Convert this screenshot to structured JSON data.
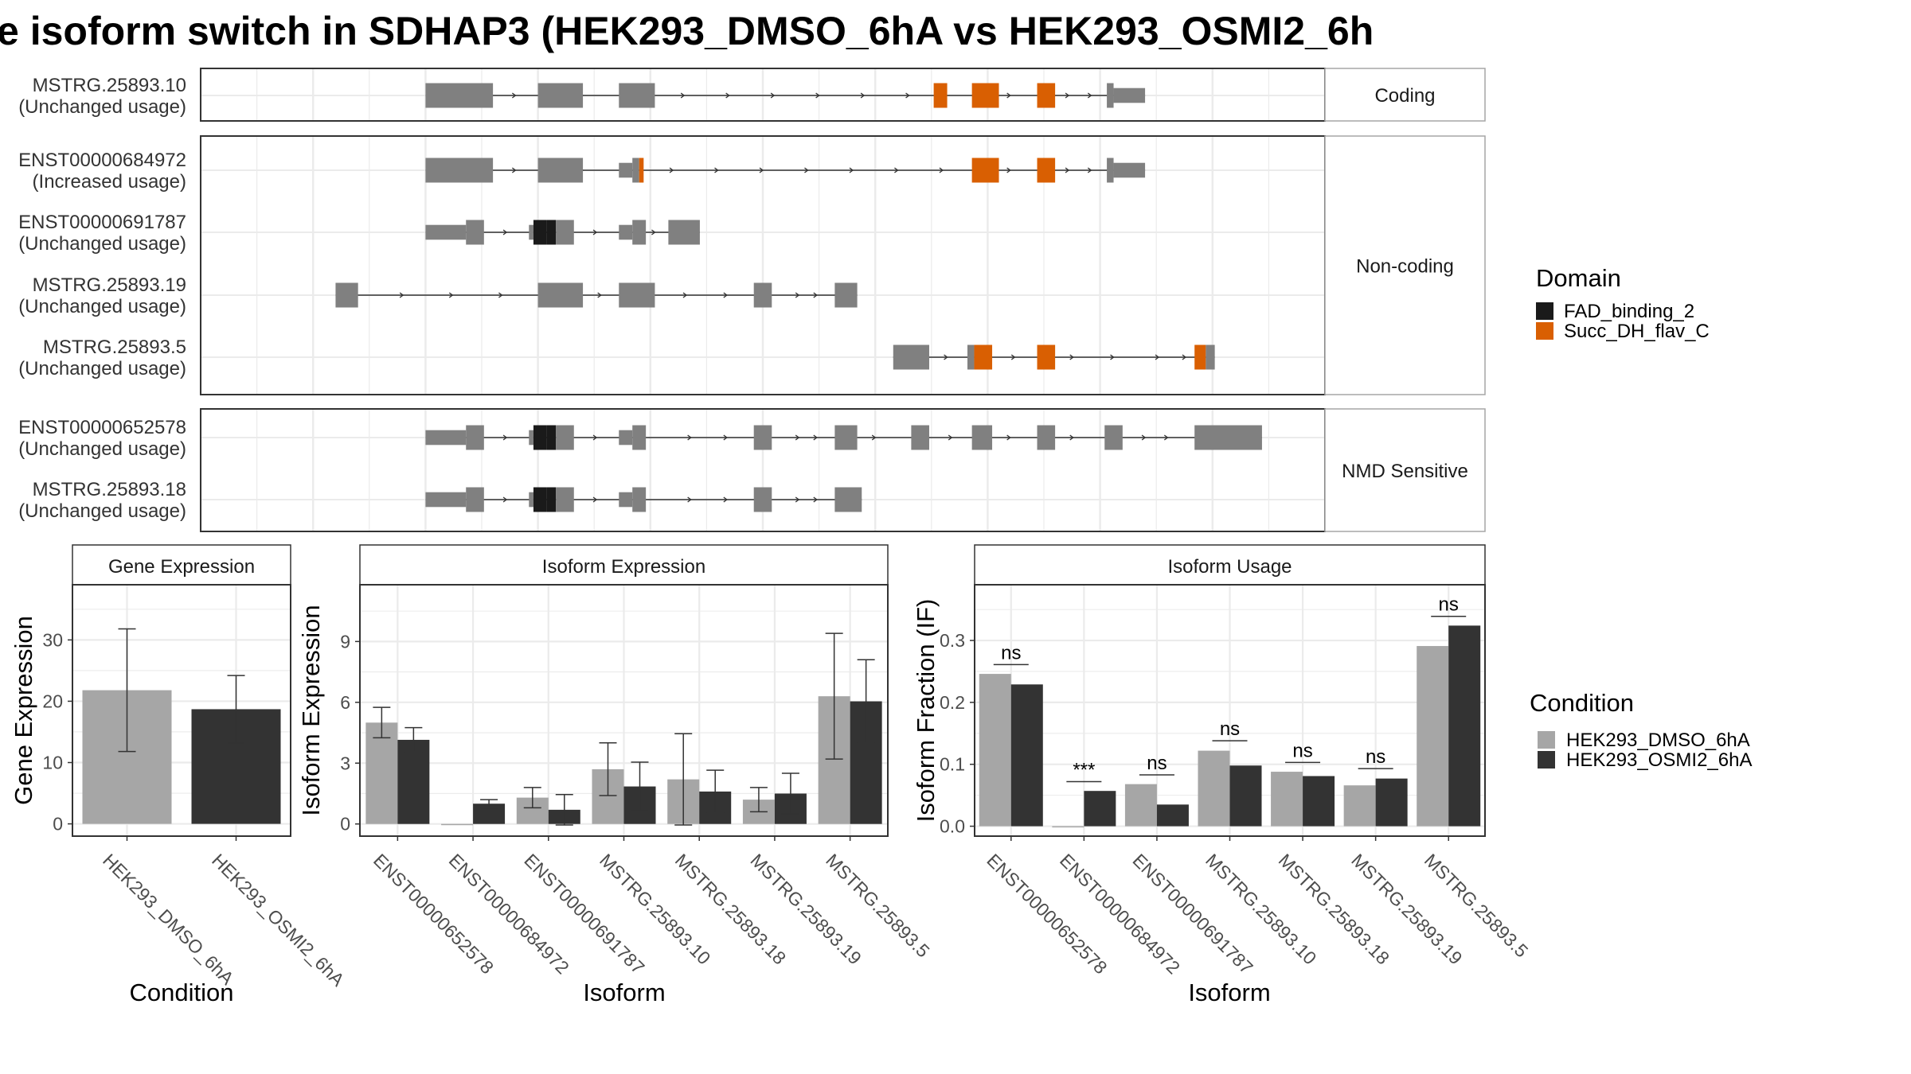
{
  "title": "e isoform switch in SDHAP3 (HEK293_DMSO_6hA vs HEK293_OSMI2_6h",
  "colors": {
    "exon": "#808080",
    "line": "#333333",
    "fad": "#1a1a1a",
    "succ": "#d95f02",
    "dmso": "#a6a6a6",
    "osmi": "#333333",
    "grid": "#ebebeb",
    "strip_bg": "#ffffff",
    "border": "#333333"
  },
  "transcripts": {
    "panels": [
      {
        "label": "Coding",
        "tracks": [
          {
            "name": "MSTRG.25893.10",
            "usage": "(Unchanged usage)",
            "exons": [
              [
                10,
                13,
                "gray",
                1
              ],
              [
                15,
                17,
                "gray",
                1
              ],
              [
                18.6,
                20.2,
                "gray",
                1
              ],
              [
                32.6,
                33.2,
                "orange",
                1
              ],
              [
                34.3,
                35.5,
                "orange",
                1
              ],
              [
                37.2,
                38,
                "orange",
                1
              ],
              [
                40.3,
                40.6,
                "gray",
                1
              ],
              [
                40.6,
                42,
                "gray",
                0.6
              ]
            ],
            "arrows": [
              12.8,
              14,
              17,
              19.8,
              21.5,
              23.5,
              25.5,
              27.5,
              29.5,
              31.5,
              36,
              38.6,
              39.6
            ]
          }
        ]
      },
      {
        "label": "Non-coding",
        "tracks": [
          {
            "name": "ENST00000684972",
            "usage": "(Increased usage)",
            "exons": [
              [
                10,
                13,
                "gray",
                1
              ],
              [
                15,
                17,
                "gray",
                1
              ],
              [
                18.6,
                19.2,
                "gray",
                0.6
              ],
              [
                19.2,
                19.5,
                "gray",
                1
              ],
              [
                19.5,
                19.7,
                "orange",
                1
              ],
              [
                34.3,
                35.5,
                "orange",
                1
              ],
              [
                37.2,
                38,
                "orange",
                1
              ],
              [
                40.3,
                40.6,
                "gray",
                1
              ],
              [
                40.6,
                42,
                "gray",
                0.6
              ]
            ],
            "arrows": [
              14,
              17,
              21,
              23,
              25,
              27,
              29,
              31,
              33,
              36,
              38.6,
              39.6
            ]
          },
          {
            "name": "ENST00000691787",
            "usage": "(Unchanged usage)",
            "exons": [
              [
                10,
                11.8,
                "gray",
                0.6
              ],
              [
                11.8,
                12.6,
                "gray",
                1
              ],
              [
                14.6,
                14.8,
                "gray",
                0.6
              ],
              [
                14.8,
                15.4,
                "fad",
                1
              ],
              [
                15.4,
                15.8,
                "fad",
                1
              ],
              [
                15.8,
                16.6,
                "gray",
                1
              ],
              [
                18.6,
                19.2,
                "gray",
                0.6
              ],
              [
                19.2,
                19.8,
                "gray",
                1
              ],
              [
                20.8,
                22.2,
                "gray",
                1
              ]
            ],
            "arrows": [
              13.6,
              17.6,
              20.2
            ]
          },
          {
            "name": "MSTRG.25893.19",
            "usage": "(Unchanged usage)",
            "exons": [
              [
                6,
                7,
                "gray",
                1
              ],
              [
                15,
                17,
                "gray",
                1
              ],
              [
                18.6,
                20.2,
                "gray",
                1
              ],
              [
                24.6,
                25.4,
                "gray",
                1
              ],
              [
                28.2,
                29.2,
                "gray",
                1
              ]
            ],
            "arrows": [
              9,
              11.2,
              13.4,
              17.8,
              21.6,
              23.4,
              26.6,
              27.4
            ]
          },
          {
            "name": "MSTRG.25893.5",
            "usage": "(Unchanged usage)",
            "exons": [
              [
                30.8,
                32.4,
                "gray",
                1
              ],
              [
                34.1,
                34.4,
                "gray",
                1
              ],
              [
                34.4,
                35.2,
                "orange",
                1
              ],
              [
                37.2,
                38,
                "orange",
                1
              ],
              [
                44.2,
                44.7,
                "orange",
                1
              ],
              [
                44.7,
                45.1,
                "gray",
                1
              ]
            ],
            "arrows": [
              33.2,
              36.2,
              38.8,
              40.6,
              42.6,
              43.8
            ]
          }
        ]
      },
      {
        "label": "NMD Sensitive",
        "tracks": [
          {
            "name": "ENST00000652578",
            "usage": "(Unchanged usage)",
            "exons": [
              [
                10,
                11.8,
                "gray",
                0.6
              ],
              [
                11.8,
                12.6,
                "gray",
                1
              ],
              [
                14.6,
                14.8,
                "gray",
                0.6
              ],
              [
                14.8,
                15.4,
                "fad",
                1
              ],
              [
                15.4,
                15.8,
                "fad",
                1
              ],
              [
                15.8,
                16.6,
                "gray",
                1
              ],
              [
                18.6,
                19.2,
                "gray",
                0.6
              ],
              [
                19.2,
                19.8,
                "gray",
                1
              ],
              [
                24.6,
                25.4,
                "gray",
                1
              ],
              [
                28.2,
                29.2,
                "gray",
                1
              ],
              [
                31.6,
                32.4,
                "gray",
                1
              ],
              [
                34.3,
                35.2,
                "gray",
                1
              ],
              [
                37.2,
                38,
                "gray",
                1
              ],
              [
                40.2,
                41,
                "gray",
                1
              ],
              [
                44.2,
                47.2,
                "gray",
                1
              ]
            ],
            "arrows": [
              13.6,
              17.6,
              21.8,
              23.4,
              26.6,
              27.4,
              30,
              33.4,
              36,
              38.8,
              42,
              43
            ]
          },
          {
            "name": "MSTRG.25893.18",
            "usage": "(Unchanged usage)",
            "exons": [
              [
                10,
                11.8,
                "gray",
                0.6
              ],
              [
                11.8,
                12.6,
                "gray",
                1
              ],
              [
                14.6,
                14.8,
                "gray",
                0.6
              ],
              [
                14.8,
                15.4,
                "fad",
                1
              ],
              [
                15.4,
                15.8,
                "fad",
                1
              ],
              [
                15.8,
                16.6,
                "gray",
                1
              ],
              [
                18.6,
                19.2,
                "gray",
                0.6
              ],
              [
                19.2,
                19.8,
                "gray",
                1
              ],
              [
                24.6,
                25.4,
                "gray",
                1
              ],
              [
                28.2,
                29.4,
                "gray",
                1
              ]
            ],
            "arrows": [
              13.6,
              17.6,
              21.8,
              23.4,
              26.6,
              27.4
            ]
          }
        ]
      }
    ]
  },
  "legends": {
    "domain": {
      "title": "Domain",
      "items": [
        "FAD_binding_2",
        "Succ_DH_flav_C"
      ]
    },
    "condition": {
      "title": "Condition",
      "items": [
        "HEK293_DMSO_6hA",
        "HEK293_OSMI2_6hA"
      ]
    }
  },
  "chart_data": [
    {
      "type": "bar",
      "title": "Gene Expression",
      "xlabel": "Condition",
      "ylabel": "Gene Expression",
      "ylim": [
        -2,
        39
      ],
      "yticks": [
        0,
        10,
        20,
        30
      ],
      "categories": [
        "HEK293_DMSO_6hA",
        "HEK293_OSMI2_6hA"
      ],
      "series": [
        {
          "name": "HEK293_DMSO_6hA",
          "values": [
            21.8,
            null
          ],
          "err": [
            10,
            null
          ]
        },
        {
          "name": "HEK293_OSMI2_6hA",
          "values": [
            null,
            18.7
          ],
          "err": [
            null,
            5.5
          ]
        }
      ]
    },
    {
      "type": "bar",
      "title": "Isoform Expression",
      "xlabel": "Isoform",
      "ylabel": "Isoform Expression",
      "ylim": [
        -0.6,
        11.8
      ],
      "yticks": [
        0,
        3,
        6,
        9
      ],
      "categories": [
        "ENST00000652578",
        "ENST00000684972",
        "ENST00000691787",
        "MSTRG.25893.10",
        "MSTRG.25893.18",
        "MSTRG.25893.19",
        "MSTRG.25893.5"
      ],
      "series": [
        {
          "name": "HEK293_DMSO_6hA",
          "values": [
            5.0,
            0.0,
            1.3,
            2.7,
            2.2,
            1.2,
            6.3
          ],
          "err": [
            0.75,
            0,
            0.5,
            1.3,
            2.25,
            0.6,
            3.1
          ]
        },
        {
          "name": "HEK293_OSMI2_6hA",
          "values": [
            4.15,
            1.0,
            0.7,
            1.85,
            1.6,
            1.5,
            6.05
          ],
          "err": [
            0.6,
            0.2,
            0.75,
            1.2,
            1.05,
            1.0,
            2.05
          ]
        }
      ]
    },
    {
      "type": "bar",
      "title": "Isoform Usage",
      "xlabel": "Isoform",
      "ylabel": "Isoform Fraction (IF)",
      "ylim": [
        -0.016,
        0.39
      ],
      "yticks": [
        0.0,
        0.1,
        0.2,
        0.3
      ],
      "ytick_labels": [
        "0.0",
        "0.1",
        "0.2",
        "0.3"
      ],
      "categories": [
        "ENST00000652578",
        "ENST00000684972",
        "ENST00000691787",
        "MSTRG.25893.10",
        "MSTRG.25893.18",
        "MSTRG.25893.19",
        "MSTRG.25893.5"
      ],
      "series": [
        {
          "name": "HEK293_DMSO_6hA",
          "values": [
            0.246,
            0.0,
            0.068,
            0.122,
            0.088,
            0.066,
            0.291
          ]
        },
        {
          "name": "HEK293_OSMI2_6hA",
          "values": [
            0.229,
            0.057,
            0.035,
            0.098,
            0.081,
            0.077,
            0.324
          ]
        }
      ],
      "annotations": [
        {
          "text": "ns",
          "level": 0.261
        },
        {
          "text": "***",
          "level": 0.072
        },
        {
          "text": "ns",
          "level": 0.083
        },
        {
          "text": "ns",
          "level": 0.138
        },
        {
          "text": "ns",
          "level": 0.103
        },
        {
          "text": "ns",
          "level": 0.093
        },
        {
          "text": "ns",
          "level": 0.339
        }
      ]
    }
  ]
}
